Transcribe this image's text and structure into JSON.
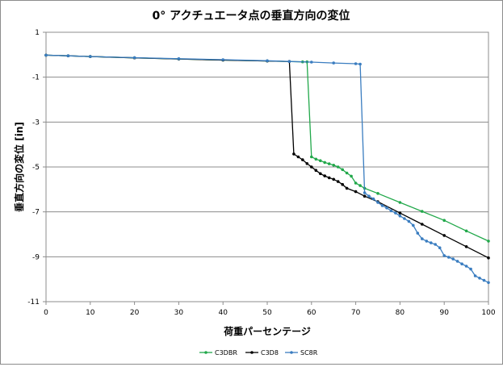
{
  "chart_data": {
    "type": "line",
    "title": "0° アクチュエータ点の垂直方向の変位",
    "xlabel": "荷重パーセンテージ",
    "ylabel": "垂直方向の変位 [in]",
    "xlim": [
      0,
      100
    ],
    "ylim": [
      -11,
      1
    ],
    "x_ticks": [
      "0",
      "10",
      "20",
      "30",
      "40",
      "50",
      "60",
      "70",
      "80",
      "90",
      "100"
    ],
    "y_ticks": [
      "1",
      "-1",
      "-3",
      "-5",
      "-7",
      "-9",
      "-11"
    ],
    "grid": "horizontal",
    "legend_position": "bottom",
    "series": [
      {
        "name": "C3DBR",
        "color": "#21a84a",
        "points": [
          [
            0,
            -0.02
          ],
          [
            5,
            -0.05
          ],
          [
            10,
            -0.08
          ],
          [
            20,
            -0.14
          ],
          [
            30,
            -0.19
          ],
          [
            40,
            -0.24
          ],
          [
            50,
            -0.28
          ],
          [
            58,
            -0.32
          ],
          [
            59,
            -0.32
          ],
          [
            60,
            -4.55
          ],
          [
            61,
            -4.65
          ],
          [
            62,
            -4.72
          ],
          [
            63,
            -4.8
          ],
          [
            64,
            -4.86
          ],
          [
            65,
            -4.92
          ],
          [
            66,
            -5.0
          ],
          [
            67,
            -5.12
          ],
          [
            68,
            -5.27
          ],
          [
            69,
            -5.41
          ],
          [
            70,
            -5.72
          ],
          [
            71,
            -5.83
          ],
          [
            72,
            -5.95
          ],
          [
            75,
            -6.18
          ],
          [
            80,
            -6.58
          ],
          [
            85,
            -6.98
          ],
          [
            90,
            -7.38
          ],
          [
            95,
            -7.85
          ],
          [
            100,
            -8.3
          ]
        ]
      },
      {
        "name": "C3D8",
        "color": "#000000",
        "points": [
          [
            0,
            -0.02
          ],
          [
            5,
            -0.05
          ],
          [
            10,
            -0.08
          ],
          [
            20,
            -0.14
          ],
          [
            30,
            -0.19
          ],
          [
            40,
            -0.24
          ],
          [
            50,
            -0.28
          ],
          [
            55,
            -0.3
          ],
          [
            56,
            -4.42
          ],
          [
            57,
            -4.55
          ],
          [
            58,
            -4.68
          ],
          [
            59,
            -4.85
          ],
          [
            60,
            -5.0
          ],
          [
            61,
            -5.15
          ],
          [
            62,
            -5.3
          ],
          [
            63,
            -5.4
          ],
          [
            64,
            -5.48
          ],
          [
            65,
            -5.55
          ],
          [
            66,
            -5.65
          ],
          [
            67,
            -5.78
          ],
          [
            68,
            -5.95
          ],
          [
            70,
            -6.1
          ],
          [
            72,
            -6.3
          ],
          [
            75,
            -6.55
          ],
          [
            80,
            -7.05
          ],
          [
            85,
            -7.55
          ],
          [
            90,
            -8.05
          ],
          [
            95,
            -8.55
          ],
          [
            100,
            -9.05
          ]
        ]
      },
      {
        "name": "SC8R",
        "color": "#3a7dc0",
        "points": [
          [
            0,
            -0.02
          ],
          [
            5,
            -0.05
          ],
          [
            10,
            -0.08
          ],
          [
            20,
            -0.13
          ],
          [
            30,
            -0.18
          ],
          [
            40,
            -0.22
          ],
          [
            50,
            -0.27
          ],
          [
            55,
            -0.3
          ],
          [
            60,
            -0.33
          ],
          [
            65,
            -0.37
          ],
          [
            70,
            -0.4
          ],
          [
            71,
            -0.42
          ],
          [
            72,
            -6.15
          ],
          [
            73,
            -6.3
          ],
          [
            74,
            -6.42
          ],
          [
            75,
            -6.58
          ],
          [
            76,
            -6.72
          ],
          [
            77,
            -6.82
          ],
          [
            78,
            -6.95
          ],
          [
            79,
            -7.05
          ],
          [
            80,
            -7.18
          ],
          [
            81,
            -7.3
          ],
          [
            82,
            -7.42
          ],
          [
            83,
            -7.6
          ],
          [
            84,
            -7.95
          ],
          [
            85,
            -8.2
          ],
          [
            86,
            -8.3
          ],
          [
            87,
            -8.38
          ],
          [
            88,
            -8.45
          ],
          [
            89,
            -8.6
          ],
          [
            90,
            -8.95
          ],
          [
            91,
            -9.02
          ],
          [
            92,
            -9.1
          ],
          [
            93,
            -9.2
          ],
          [
            94,
            -9.32
          ],
          [
            95,
            -9.42
          ],
          [
            96,
            -9.55
          ],
          [
            97,
            -9.85
          ],
          [
            98,
            -9.95
          ],
          [
            99,
            -10.05
          ],
          [
            100,
            -10.15
          ]
        ]
      }
    ]
  }
}
